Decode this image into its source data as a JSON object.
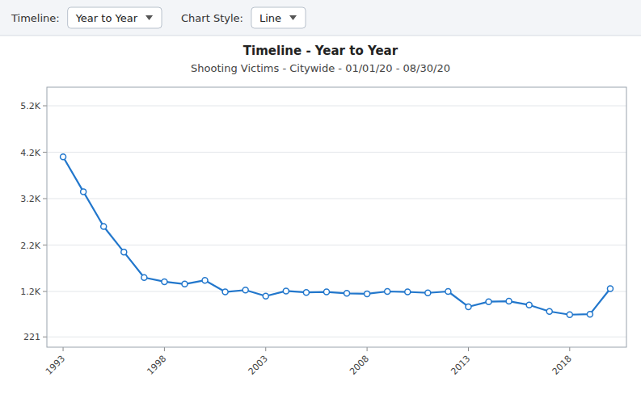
{
  "chart_data": {
    "type": "line",
    "title": "Timeline - Year to Year",
    "subtitle": "Shooting Victims - Citywide - 01/01/20 - 08/30/20",
    "annotations": [
      "Timeline:",
      "Year to Year",
      "Chart Style:",
      "Line"
    ],
    "x": [
      1993,
      1994,
      1995,
      1996,
      1997,
      1998,
      1999,
      2000,
      2001,
      2002,
      2003,
      2004,
      2005,
      2006,
      2007,
      2008,
      2009,
      2010,
      2011,
      2012,
      2013,
      2014,
      2015,
      2016,
      2017,
      2018,
      2019,
      2020
    ],
    "values": [
      4100,
      3350,
      2600,
      2050,
      1500,
      1410,
      1360,
      1440,
      1190,
      1230,
      1100,
      1210,
      1180,
      1190,
      1160,
      1150,
      1200,
      1190,
      1170,
      1200,
      870,
      980,
      990,
      910,
      770,
      700,
      710,
      1260
    ],
    "color": "#2277cc",
    "marker": "circle",
    "xlim": [
      1992.2,
      2020.8
    ],
    "xticks": [
      1993,
      1998,
      2003,
      2008,
      2013,
      2018
    ],
    "ylim": [
      0,
      5600
    ],
    "yticks": [
      221,
      {
        "value": 1200,
        "label": "1.2K"
      },
      {
        "value": 2200,
        "label": "2.2K"
      },
      {
        "value": 3200,
        "label": "3.2K"
      },
      {
        "value": 4200,
        "label": "4.2K"
      },
      {
        "value": 5200,
        "label": "5.2K"
      }
    ],
    "grid": true
  }
}
